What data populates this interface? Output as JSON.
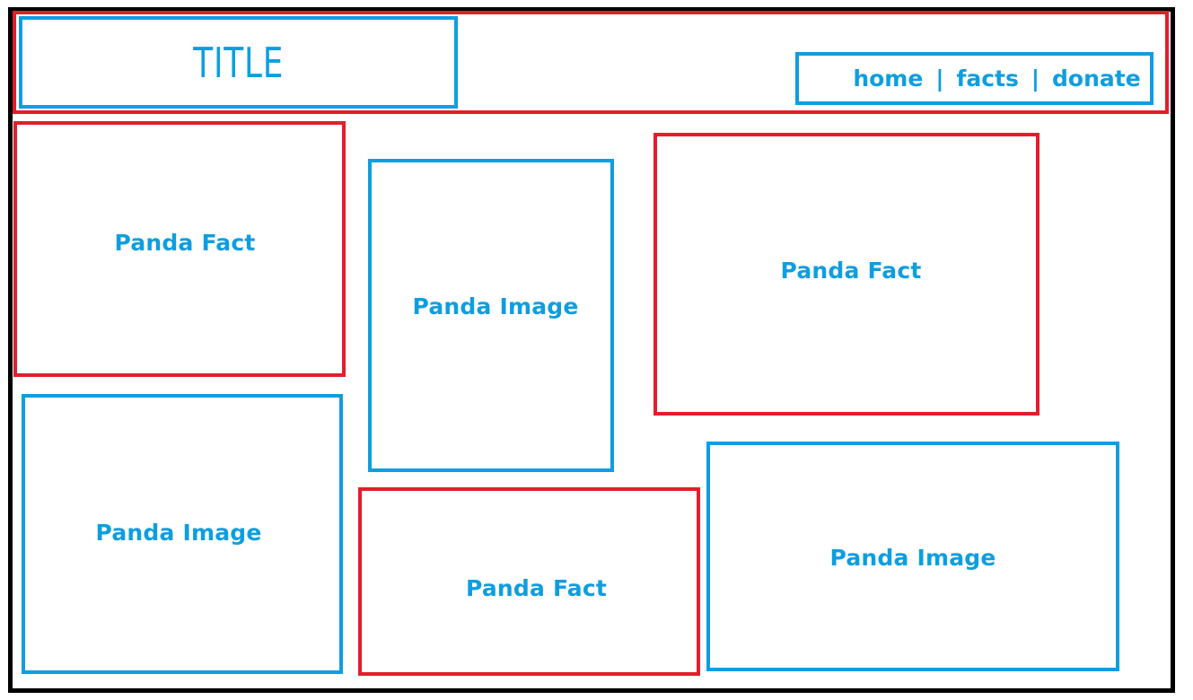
{
  "header": {
    "title": "TITLE",
    "nav": {
      "home": "home",
      "facts": "facts",
      "donate": "donate",
      "separator": "|"
    }
  },
  "cards": [
    {
      "label": "Panda Fact",
      "kind": "fact"
    },
    {
      "label": "Panda Image",
      "kind": "image"
    },
    {
      "label": "Panda Fact",
      "kind": "fact"
    },
    {
      "label": "Panda Image",
      "kind": "image"
    },
    {
      "label": "Panda Fact",
      "kind": "fact"
    },
    {
      "label": "Panda Image",
      "kind": "image"
    }
  ],
  "colors": {
    "container": "#e21e2a",
    "element": "#0e9ee0",
    "frame": "#000000"
  }
}
